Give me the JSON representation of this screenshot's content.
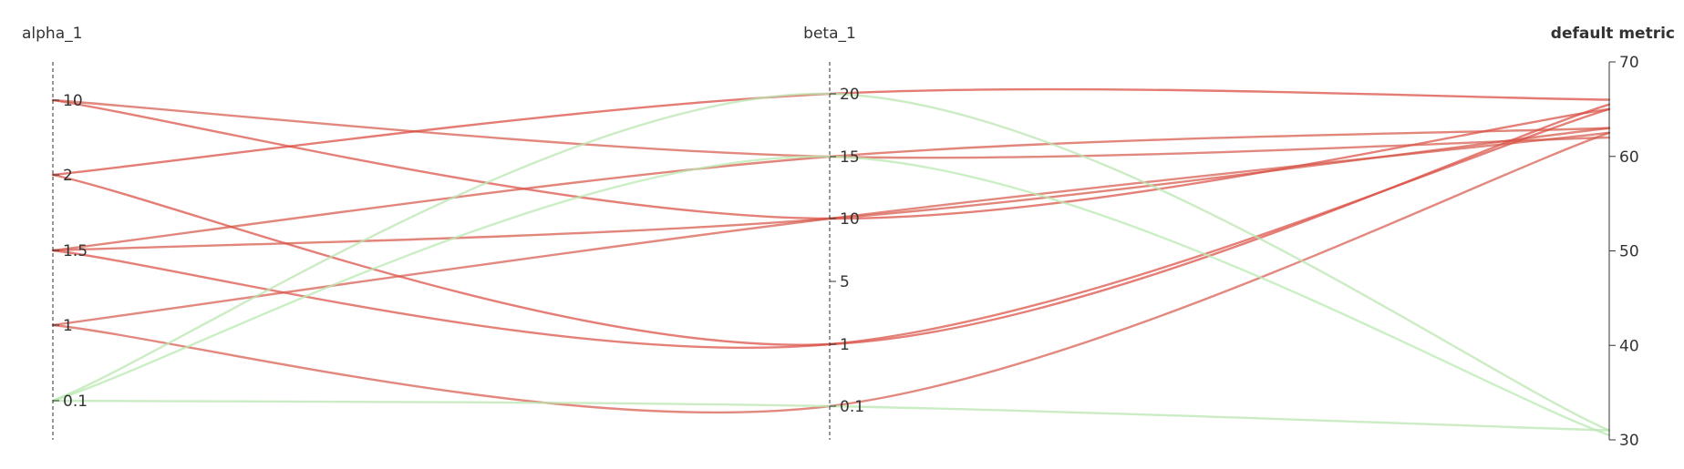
{
  "chart_data": {
    "type": "parallel-coordinates",
    "axes": [
      {
        "name": "alpha_1",
        "scale": "categorical",
        "ticks": [
          "10",
          "2",
          "1.5",
          "1",
          "0.1"
        ],
        "bold": false
      },
      {
        "name": "beta_1",
        "scale": "categorical",
        "ticks": [
          "20",
          "15",
          "10",
          "5",
          "1",
          "0.1"
        ],
        "bold": false
      },
      {
        "name": "default metric",
        "scale": "linear",
        "range": [
          30,
          70
        ],
        "ticks": [
          "70",
          "60",
          "50",
          "40",
          "30"
        ],
        "bold": true
      }
    ],
    "colors": {
      "low": "#b9ebb3",
      "high": "#d9453b"
    },
    "metric_color_range": [
      30,
      66
    ],
    "lines": [
      {
        "alpha_1": "10",
        "beta_1": "10",
        "metric": 65
      },
      {
        "alpha_1": "10",
        "beta_1": "15",
        "metric": 62
      },
      {
        "alpha_1": "2",
        "beta_1": "20",
        "metric": 66
      },
      {
        "alpha_1": "2",
        "beta_1": "1",
        "metric": 65.5
      },
      {
        "alpha_1": "1.5",
        "beta_1": "15",
        "metric": 63
      },
      {
        "alpha_1": "1.5",
        "beta_1": "10",
        "metric": 63
      },
      {
        "alpha_1": "1.5",
        "beta_1": "1",
        "metric": 65
      },
      {
        "alpha_1": "1",
        "beta_1": "10",
        "metric": 62.5
      },
      {
        "alpha_1": "1",
        "beta_1": "0.1",
        "metric": 62.5
      },
      {
        "alpha_1": "0.1",
        "beta_1": "20",
        "metric": 31
      },
      {
        "alpha_1": "0.1",
        "beta_1": "15",
        "metric": 30.5
      },
      {
        "alpha_1": "0.1",
        "beta_1": "0.1",
        "metric": 31
      }
    ]
  }
}
